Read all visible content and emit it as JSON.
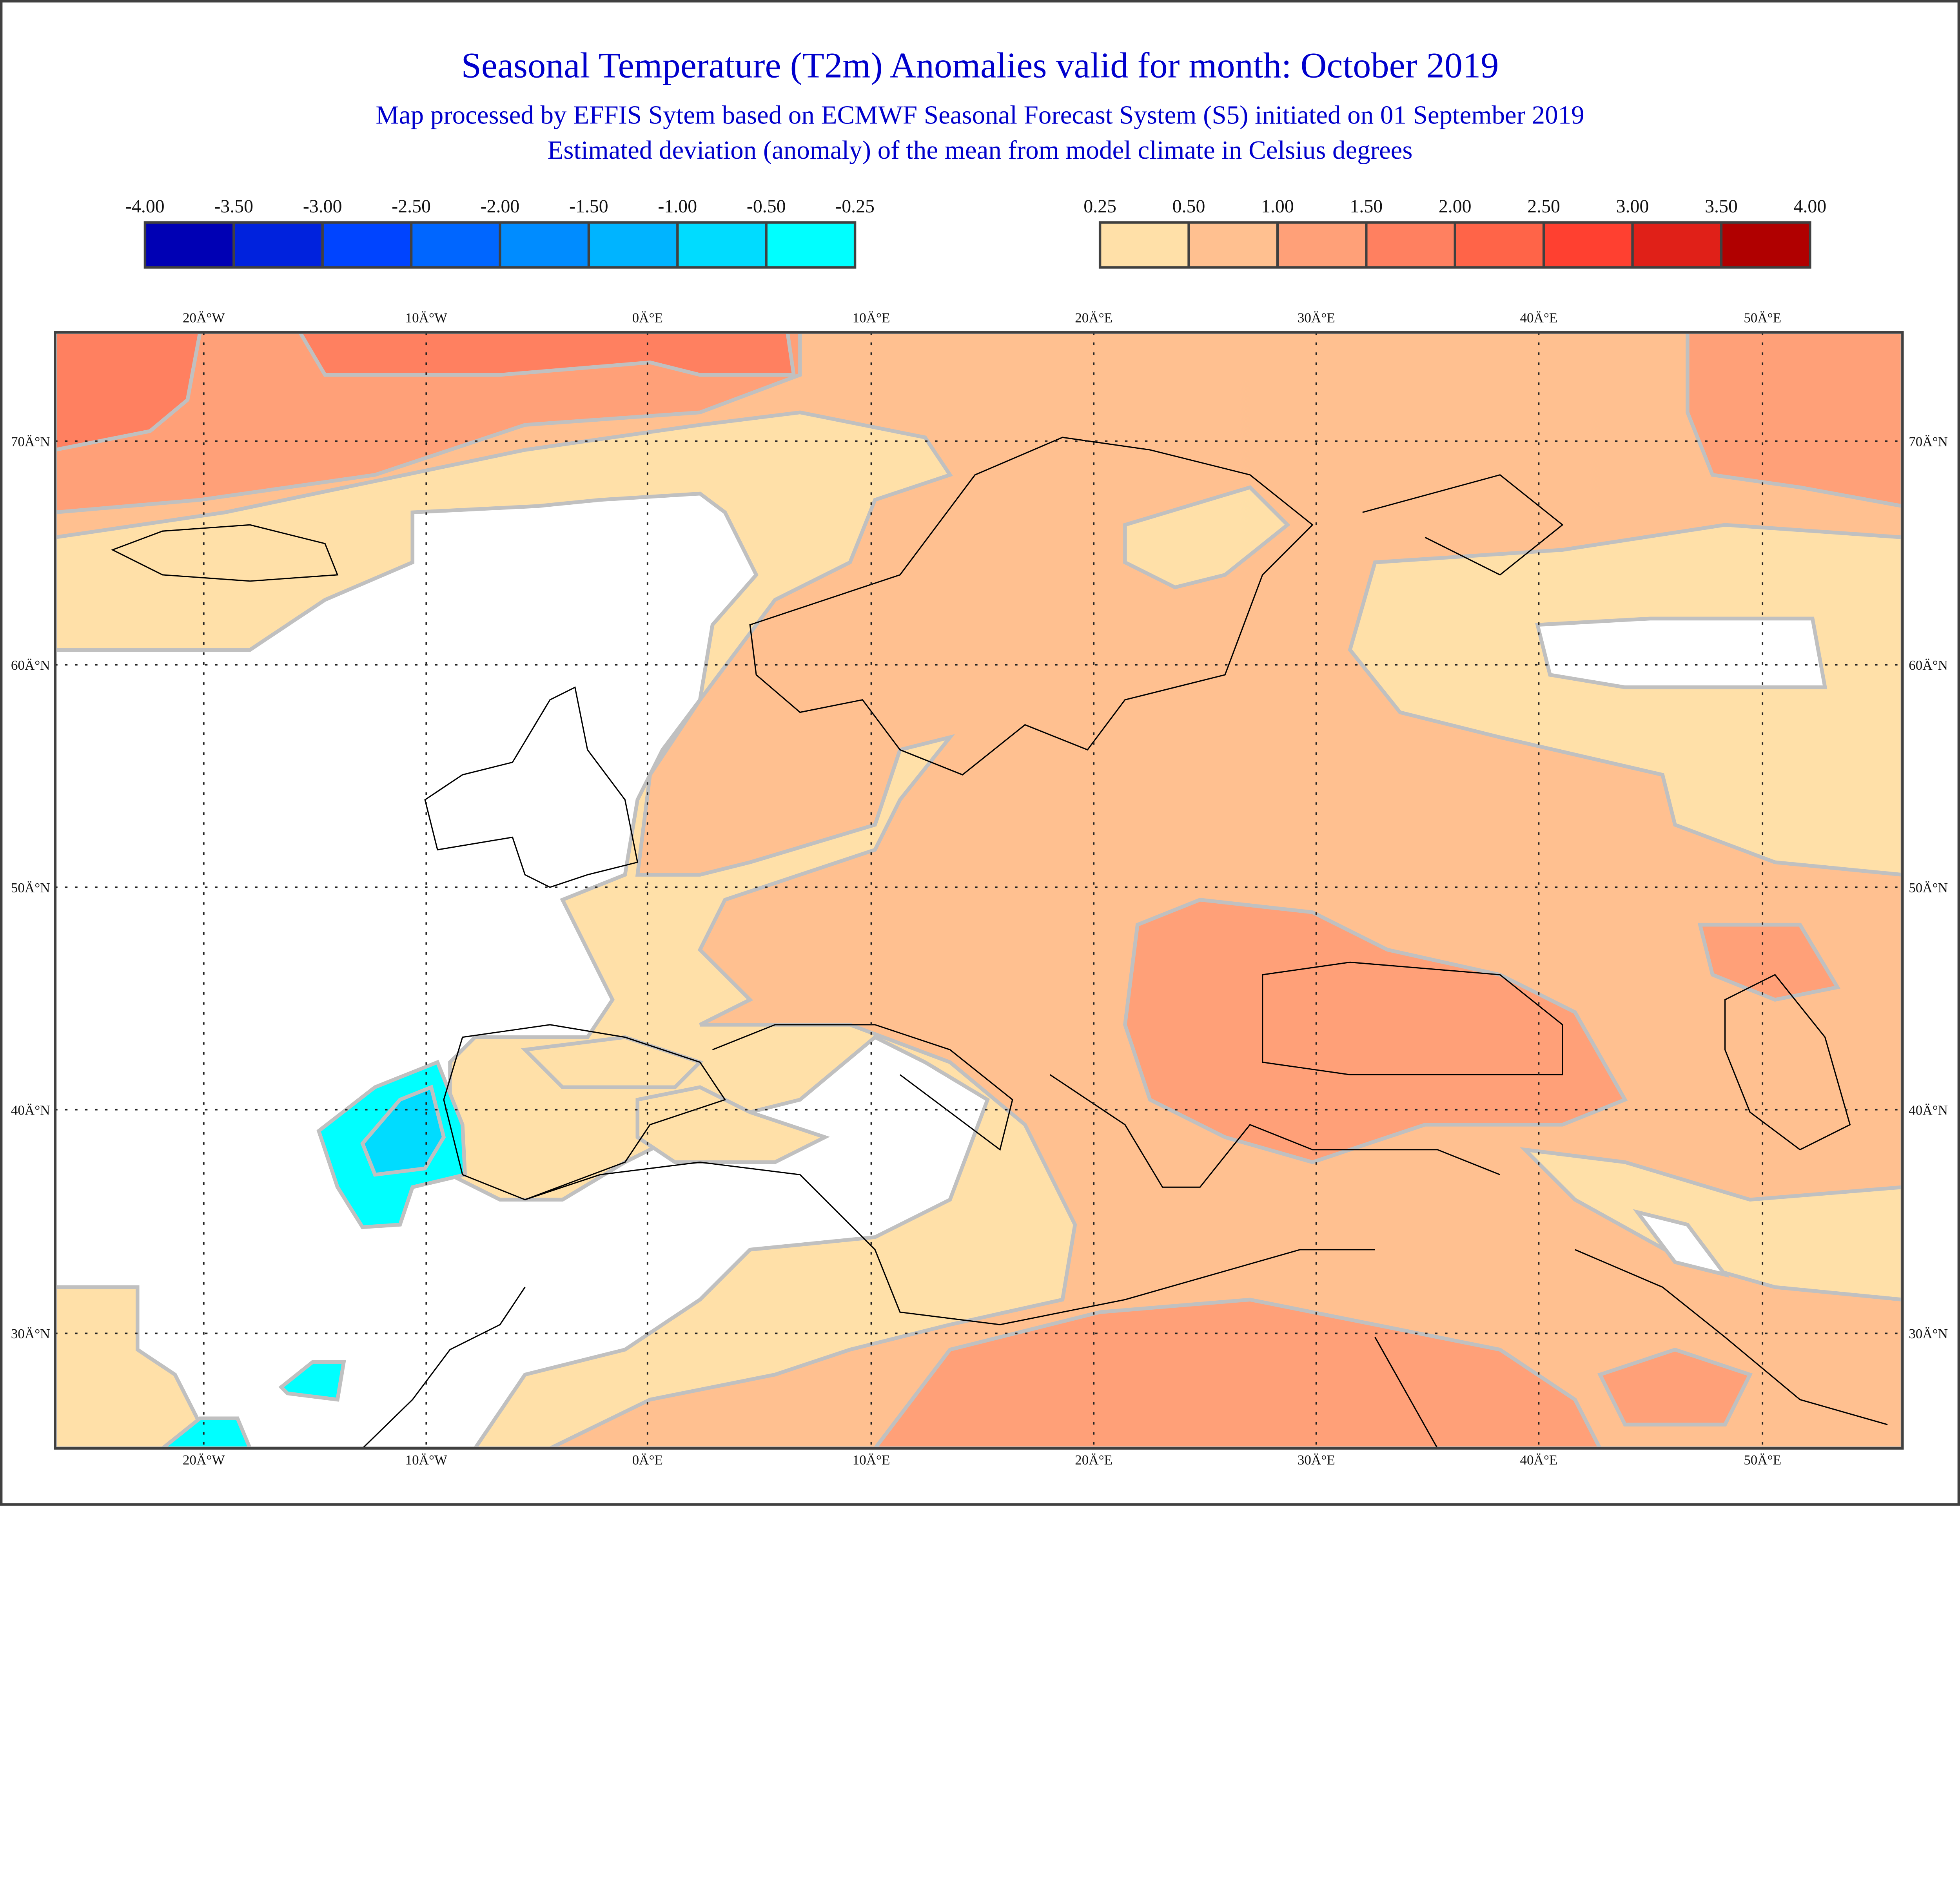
{
  "header": {
    "title": "Seasonal Temperature (T2m) Anomalies valid for month: October 2019",
    "subtitle": "Map processed by EFFIS Sytem based on ECMWF Seasonal Forecast System (S5) initiated on 01 September 2019",
    "description": "Estimated deviation (anomaly) of the mean from model climate in Celsius degrees",
    "text_color": "#0000CC"
  },
  "legend": {
    "negative": {
      "labels": [
        "-4.00",
        "-3.50",
        "-3.00",
        "-2.50",
        "-2.00",
        "-1.50",
        "-1.00",
        "-0.50",
        "-0.25"
      ],
      "colors": [
        "#0000B4",
        "#0022DD",
        "#0044FF",
        "#0066FF",
        "#008CFF",
        "#00B4FF",
        "#00DCFF",
        "#00FFFF"
      ]
    },
    "positive": {
      "labels": [
        "0.25",
        "0.50",
        "1.00",
        "1.50",
        "2.00",
        "2.50",
        "3.00",
        "3.50",
        "4.00"
      ],
      "colors": [
        "#FFE0A8",
        "#FFC090",
        "#FFA078",
        "#FF8060",
        "#FF6448",
        "#FF4030",
        "#E02018",
        "#B00000"
      ]
    }
  },
  "map": {
    "lon_labels": [
      "20Ä°W",
      "10Ä°W",
      "0Ä°E",
      "10Ä°E",
      "20Ä°E",
      "30Ä°E",
      "40Ä°E",
      "50Ä°E"
    ],
    "lat_labels": [
      "70Ä°N",
      "60Ä°N",
      "50Ä°N",
      "40Ä°N",
      "30Ä°N"
    ],
    "neutral_color": "#FFFFFF",
    "contour_color": "#C0C0C0"
  }
}
